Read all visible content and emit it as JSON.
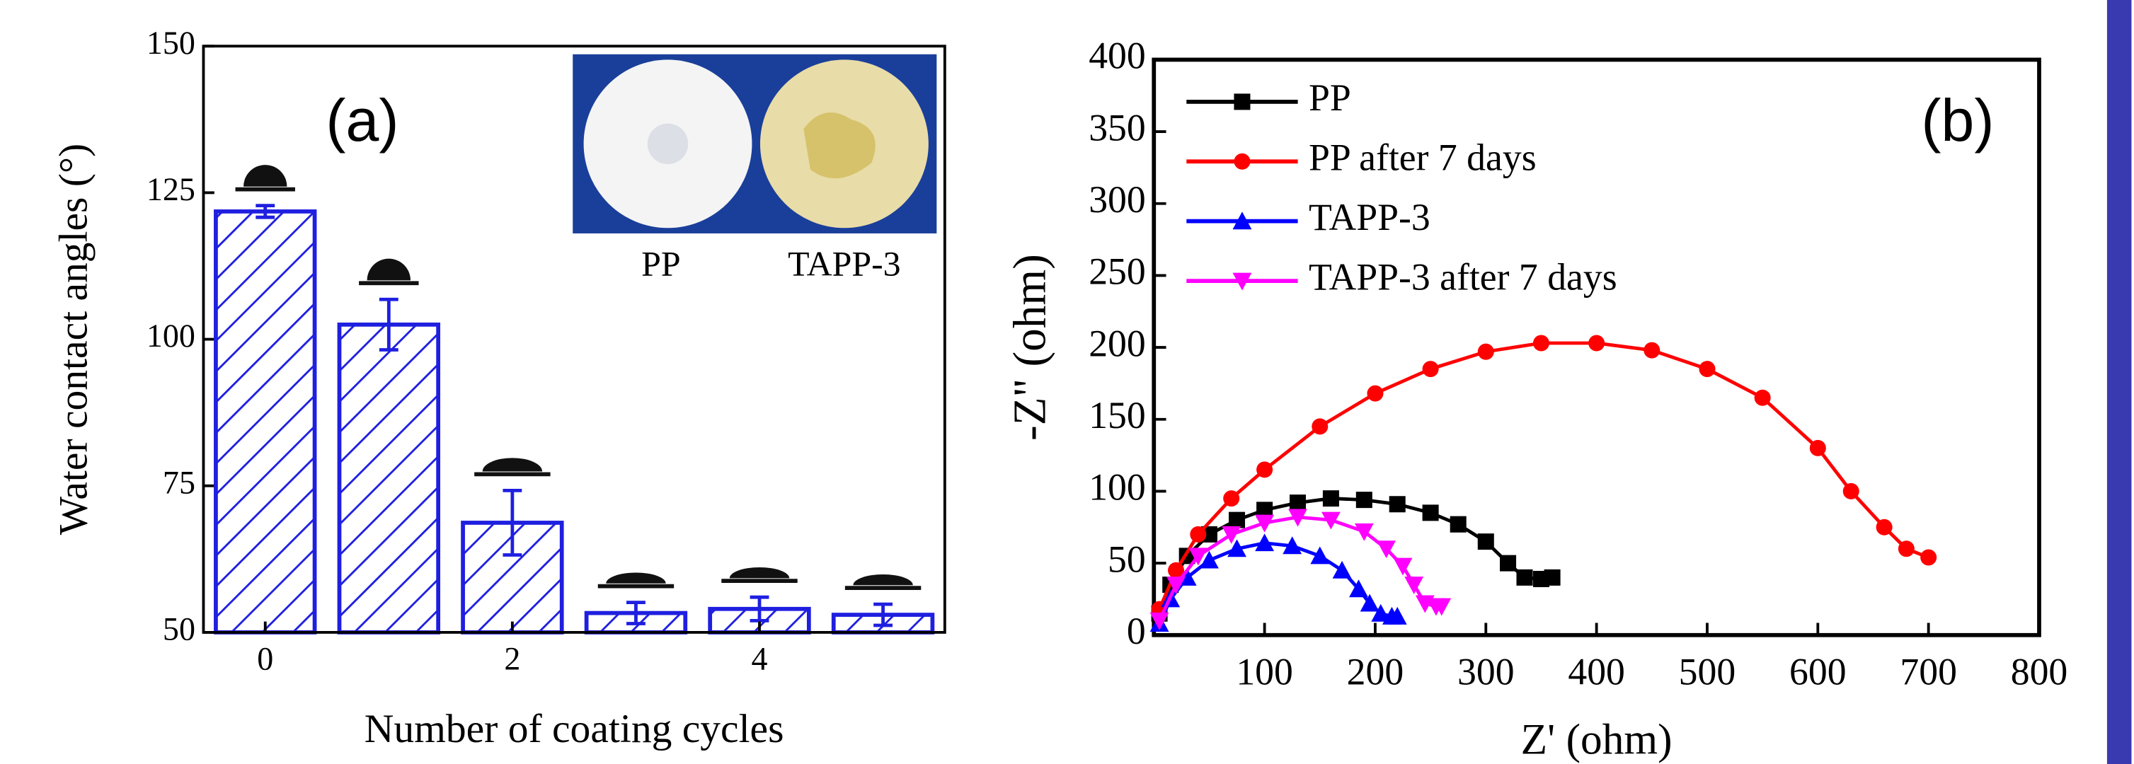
{
  "chart_data": [
    {
      "type": "bar",
      "annotation": "(a)",
      "x_label": "Number of coating cycles",
      "y_label": "Water contact angles (°)",
      "categories": [
        "0",
        null,
        "2",
        null,
        "4",
        null
      ],
      "values": [
        121.8,
        102.5,
        68.7,
        53.3,
        54.0,
        53.0
      ],
      "errors": [
        1.0,
        4.3,
        5.5,
        1.8,
        2.0,
        1.8
      ],
      "color": "#1f1fe0",
      "ylim": [
        50,
        150
      ],
      "yticks": [
        50,
        75,
        100,
        125,
        150
      ],
      "inset_labels": [
        "PP",
        "TAPP-3"
      ]
    },
    {
      "type": "line",
      "annotation": "(b)",
      "x_label": "Z' (ohm)",
      "y_label": "-Z\" (ohm)",
      "xlim": [
        0,
        800
      ],
      "xticks": [
        100,
        200,
        300,
        400,
        500,
        600,
        700,
        800
      ],
      "ylim": [
        0,
        400
      ],
      "yticks": [
        0,
        50,
        100,
        150,
        200,
        250,
        300,
        350,
        400
      ],
      "legend": "upper left",
      "series": [
        {
          "name": "PP",
          "color": "#000000",
          "marker": "square",
          "x": [
            5,
            15,
            30,
            50,
            75,
            100,
            130,
            160,
            190,
            220,
            250,
            275,
            300,
            320,
            335,
            350,
            360
          ],
          "values": [
            15,
            35,
            55,
            70,
            80,
            87,
            92,
            95,
            94,
            91,
            85,
            77,
            65,
            50,
            40,
            39,
            40
          ]
        },
        {
          "name": "PP after 7 days",
          "color": "#ff0000",
          "marker": "circle",
          "x": [
            5,
            20,
            40,
            70,
            100,
            150,
            200,
            250,
            300,
            350,
            400,
            450,
            500,
            550,
            600,
            630,
            660,
            680,
            700
          ],
          "values": [
            18,
            45,
            70,
            95,
            115,
            145,
            168,
            185,
            197,
            203,
            203,
            198,
            185,
            165,
            130,
            100,
            75,
            60,
            54
          ]
        },
        {
          "name": "TAPP-3",
          "color": "#0000ff",
          "marker": "triangle-up",
          "x": [
            5,
            15,
            30,
            50,
            75,
            100,
            125,
            150,
            170,
            185,
            195,
            205,
            215,
            220
          ],
          "values": [
            8,
            25,
            40,
            52,
            60,
            64,
            62,
            55,
            45,
            32,
            22,
            15,
            13,
            13
          ]
        },
        {
          "name": "TAPP-3 after 7 days",
          "color": "#ff00ff",
          "marker": "triangle-down",
          "x": [
            5,
            20,
            40,
            70,
            100,
            130,
            160,
            190,
            210,
            225,
            235,
            245,
            255,
            260
          ],
          "values": [
            10,
            35,
            55,
            70,
            78,
            82,
            80,
            72,
            60,
            48,
            35,
            22,
            20,
            20
          ]
        }
      ]
    }
  ]
}
